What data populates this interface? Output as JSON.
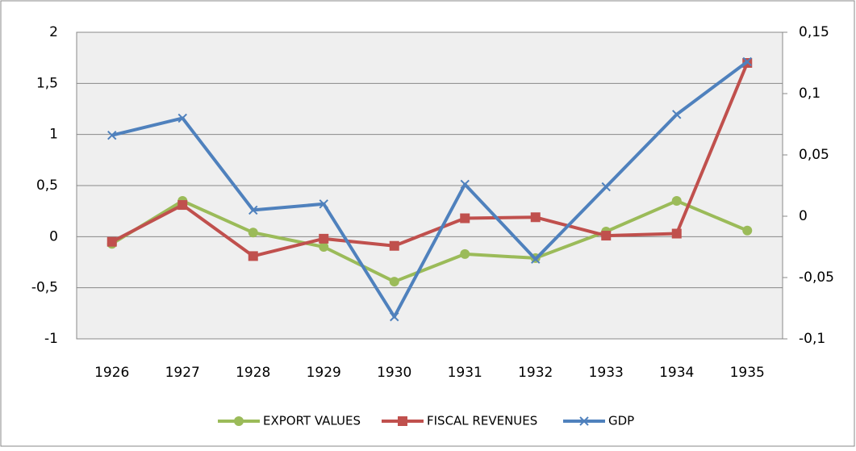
{
  "chart_data": {
    "type": "line",
    "categories": [
      "1926",
      "1927",
      "1928",
      "1929",
      "1930",
      "1931",
      "1932",
      "1933",
      "1934",
      "1935"
    ],
    "series": [
      {
        "name": "EXPORT VALUES",
        "color": "#9bbb59",
        "marker": "circle",
        "values": [
          -0.07,
          0.35,
          0.04,
          -0.1,
          -0.44,
          -0.17,
          -0.21,
          0.05,
          0.35,
          0.06
        ]
      },
      {
        "name": "FISCAL REVENUES",
        "color": "#c0504d",
        "marker": "square",
        "values": [
          -0.05,
          0.31,
          -0.19,
          -0.02,
          -0.09,
          0.18,
          0.19,
          0.01,
          0.03,
          1.7
        ]
      },
      {
        "name": "GDP",
        "color": "#4f81bd",
        "marker": "x",
        "axis": "y2",
        "values": [
          0.066,
          0.08,
          0.005,
          0.01,
          -0.082,
          0.026,
          -0.035,
          0.024,
          0.083,
          0.126
        ]
      }
    ],
    "ylim": [
      -1,
      2
    ],
    "yticks": [
      -1,
      {
        "value": -0.5,
        "label": "-0,5"
      },
      0,
      {
        "value": 0.5,
        "label": "0,5"
      },
      1,
      {
        "value": 1.5,
        "label": "1,5"
      },
      2
    ],
    "y2lim": [
      -0.1,
      0.15
    ],
    "y2ticks": [
      {
        "value": -0.1,
        "label": "-0,1"
      },
      {
        "value": -0.05,
        "label": "-0,05"
      },
      0,
      {
        "value": 0.05,
        "label": "0,05"
      },
      {
        "value": 0.1,
        "label": "0,1"
      },
      {
        "value": 0.15,
        "label": "0,15"
      }
    ],
    "grid": true,
    "legend": "bottom"
  }
}
